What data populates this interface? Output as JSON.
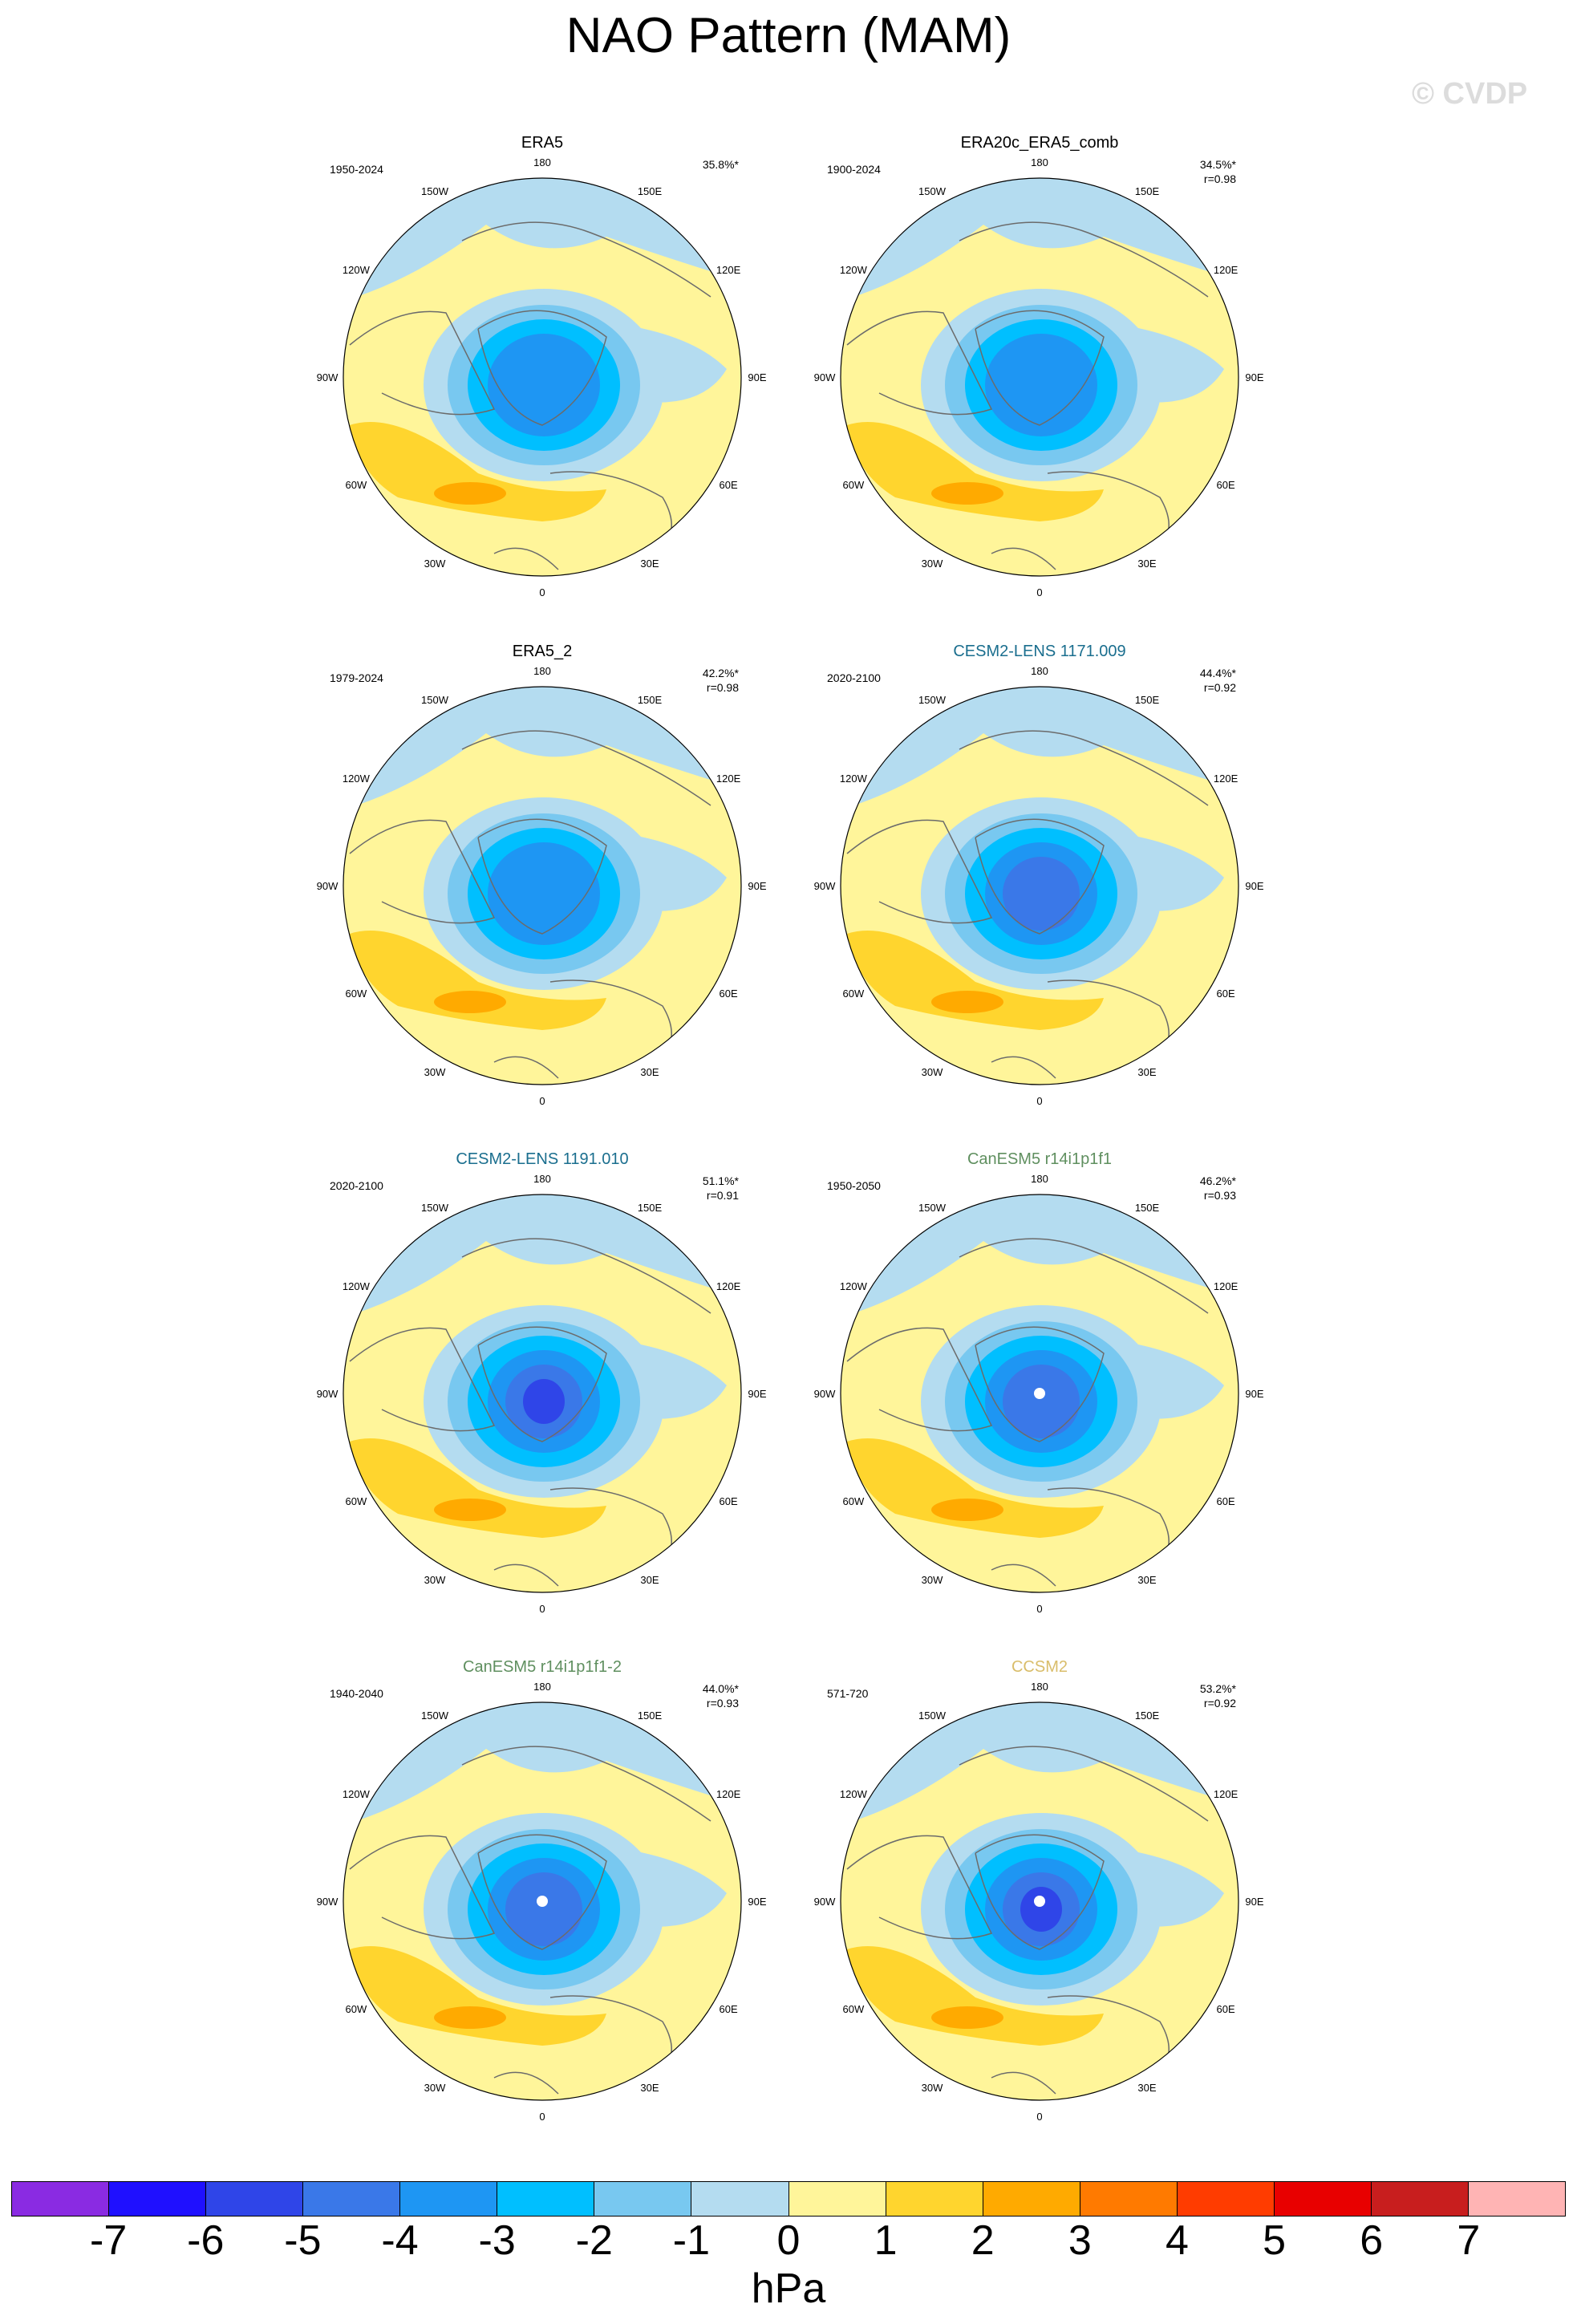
{
  "title": "NAO Pattern (MAM)",
  "copyright": "© CVDP",
  "colorbar": {
    "colors": [
      "#8a2be2",
      "#1f10ff",
      "#2f45e8",
      "#3a78e8",
      "#1e96f3",
      "#00bfff",
      "#78c8f0",
      "#b4dcf0",
      "#fff59a",
      "#ffd52e",
      "#ffaa00",
      "#ff7a00",
      "#ff3c00",
      "#e80000",
      "#c81e1e",
      "#ffb4b4"
    ],
    "labels": [
      "-7",
      "-6",
      "-5",
      "-4",
      "-3",
      "-2",
      "-1",
      "0",
      "1",
      "2",
      "3",
      "4",
      "5",
      "6",
      "7"
    ],
    "unit": "hPa"
  },
  "lon_labels": {
    "top": "180",
    "bottom": "0",
    "left": "90W",
    "right": "90E",
    "upper_left_1": "150W",
    "upper_left_2": "120W",
    "upper_right_1": "150E",
    "upper_right_2": "120E",
    "lower_left_1": "60W",
    "lower_left_2": "30W",
    "lower_right_1": "60E",
    "lower_right_2": "30E"
  },
  "panels": [
    {
      "title": "ERA5",
      "title_color": "#000000",
      "years": "1950-2024",
      "pct": "35.8%*",
      "r": "",
      "nao_level": 1.0,
      "dot": false
    },
    {
      "title": "ERA20c_ERA5_comb",
      "title_color": "#000000",
      "years": "1900-2024",
      "pct": "34.5%*",
      "r": "r=0.98",
      "nao_level": 1.0,
      "dot": false
    },
    {
      "title": "ERA5_2",
      "title_color": "#000000",
      "years": "1979-2024",
      "pct": "42.2%*",
      "r": "r=0.98",
      "nao_level": 1.0,
      "dot": false
    },
    {
      "title": "CESM2-LENS 1171.009",
      "title_color": "#1a6e8e",
      "years": "2020-2100",
      "pct": "44.4%*",
      "r": "r=0.92",
      "nao_level": 1.3,
      "dot": false
    },
    {
      "title": "CESM2-LENS 1191.010",
      "title_color": "#1a6e8e",
      "years": "2020-2100",
      "pct": "51.1%*",
      "r": "r=0.91",
      "nao_level": 1.4,
      "dot": false
    },
    {
      "title": "CanESM5 r14i1p1f1",
      "title_color": "#5f8f5f",
      "years": "1950-2050",
      "pct": "46.2%*",
      "r": "r=0.93",
      "nao_level": 1.2,
      "dot": true
    },
    {
      "title": "CanESM5 r14i1p1f1-2",
      "title_color": "#5f8f5f",
      "years": "1940-2040",
      "pct": "44.0%*",
      "r": "r=0.93",
      "nao_level": 1.2,
      "dot": true
    },
    {
      "title": "CCSM2",
      "title_color": "#d9bd6a",
      "years": "571-720",
      "pct": "53.2%*",
      "r": "r=0.92",
      "nao_level": 1.4,
      "dot": true
    }
  ]
}
